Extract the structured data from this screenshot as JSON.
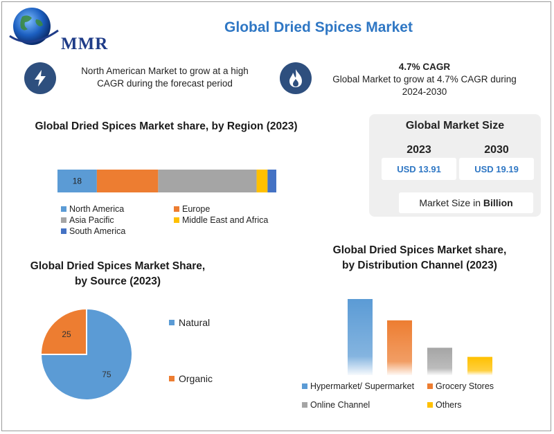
{
  "brand": {
    "logo_text": "MMR"
  },
  "header": {
    "title": "Global Dried Spices Market"
  },
  "info": {
    "left": {
      "icon": "lightning-icon",
      "text": "North American Market to grow at a high CAGR during the forecast period"
    },
    "right": {
      "icon": "flame-icon",
      "heading": "4.7% CAGR",
      "text": "Global Market to grow at 4.7% CAGR during 2024-2030"
    }
  },
  "market_size": {
    "title": "Global Market Size",
    "year1": "2023",
    "value1": "USD 13.91",
    "year2": "2030",
    "value2": "USD 19.19",
    "unit_text": "Market Size in ",
    "unit_bold": "Billion"
  },
  "colors": {
    "north_america": "#5b9bd5",
    "europe": "#ed7d31",
    "asia_pacific": "#a5a5a5",
    "mea": "#ffc000",
    "south_america": "#4472c4",
    "title_blue": "#2f77c4"
  },
  "chart_data": [
    {
      "type": "bar",
      "orientation": "horizontal-stacked",
      "title": "Global Dried Spices Market share, by Region (2023)",
      "categories": [
        "2023"
      ],
      "series": [
        {
          "name": "North America",
          "values": [
            18
          ],
          "label": "18"
        },
        {
          "name": "Europe",
          "values": [
            28
          ]
        },
        {
          "name": "Asia Pacific",
          "values": [
            45
          ]
        },
        {
          "name": "Middle East and Africa",
          "values": [
            5
          ]
        },
        {
          "name": "South America",
          "values": [
            4
          ]
        }
      ],
      "legend_position": "bottom"
    },
    {
      "type": "pie",
      "title": "Global Dried Spices Market Share, by Source (2023)",
      "labels": [
        "Natural",
        "Organic"
      ],
      "values": [
        75,
        25
      ],
      "legend_position": "right"
    },
    {
      "type": "bar",
      "title": "Global Dried Spices Market share, by Distribution Channel (2023)",
      "categories": [
        "Hypermarket/ Supermarket",
        "Grocery Stores",
        "Online Channel",
        "Others"
      ],
      "values": [
        50,
        36,
        18,
        12
      ],
      "legend_position": "bottom"
    }
  ]
}
